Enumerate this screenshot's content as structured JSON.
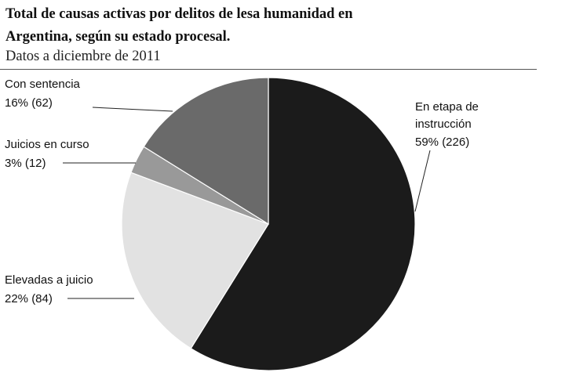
{
  "title_line1": "Total de causas activas por delitos de lesa humanidad en",
  "title_line2": "Argentina, según su estado procesal.",
  "subtitle": "Datos a diciembre de 2011",
  "chart_data": {
    "type": "pie",
    "title": "Total de causas activas por delitos de lesa humanidad en Argentina, según su estado procesal.",
    "subtitle": "Datos a diciembre de 2011",
    "slices": [
      {
        "label": "En etapa de instrucción",
        "percent_label": "59% (226)",
        "percent": 59,
        "value": 226,
        "color": "#1b1b1b"
      },
      {
        "label": "Elevadas a juicio",
        "percent_label": "22% (84)",
        "percent": 22,
        "value": 84,
        "color": "#e2e2e2"
      },
      {
        "label": "Juicios en curso",
        "percent_label": "3% (12)",
        "percent": 3,
        "value": 12,
        "color": "#999999"
      },
      {
        "label": "Con sentencia",
        "percent_label": "16% (62)",
        "percent": 16,
        "value": 62,
        "color": "#6a6a6a"
      }
    ]
  }
}
